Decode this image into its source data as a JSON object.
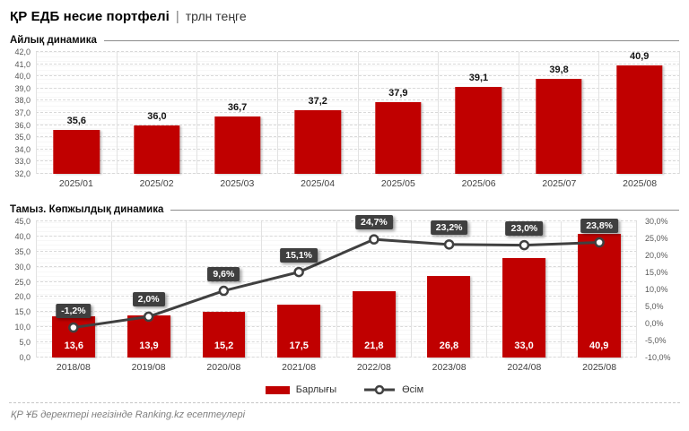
{
  "header": {
    "title": "ҚР ЕДБ несие портфелі",
    "separator": "|",
    "unit": "трлн теңге"
  },
  "legend": {
    "items": [
      {
        "label": "Барлығы",
        "type": "bar"
      },
      {
        "label": "Өсім",
        "type": "line"
      }
    ]
  },
  "footer": {
    "text": "ҚР ҰБ деректері негізінде Ranking.kz есептеулері"
  },
  "chart_data": [
    {
      "type": "bar",
      "title": "Айлық динамика",
      "categories": [
        "2025/01",
        "2025/02",
        "2025/03",
        "2025/04",
        "2025/05",
        "2025/06",
        "2025/07",
        "2025/08"
      ],
      "values": [
        35.6,
        36.0,
        36.7,
        37.2,
        37.9,
        39.1,
        39.8,
        40.9
      ],
      "value_labels": [
        "35,6",
        "36,0",
        "36,7",
        "37,2",
        "37,9",
        "39,1",
        "39,8",
        "40,9"
      ],
      "ylim": [
        32,
        42
      ],
      "ytick_labels": [
        "42,0",
        "41,0",
        "40,0",
        "39,0",
        "38,0",
        "37,0",
        "36,0",
        "35,0",
        "34,0",
        "33,0",
        "32,0"
      ],
      "grid": true,
      "bar_color": "#c00000",
      "legend_position": "none"
    },
    {
      "type": "bar+line",
      "title": "Тамыз. Көпжылдық динамика",
      "categories": [
        "2018/08",
        "2019/08",
        "2020/08",
        "2021/08",
        "2022/08",
        "2023/08",
        "2024/08",
        "2025/08"
      ],
      "series": [
        {
          "name": "Барлығы",
          "type": "bar",
          "axis": "left",
          "color": "#c00000",
          "values": [
            13.6,
            13.9,
            15.2,
            17.5,
            21.8,
            26.8,
            33.0,
            40.9
          ],
          "value_labels": [
            "13,6",
            "13,9",
            "15,2",
            "17,5",
            "21,8",
            "26,8",
            "33,0",
            "40,9"
          ]
        },
        {
          "name": "Өсім",
          "type": "line",
          "axis": "right",
          "color": "#404040",
          "values": [
            -1.2,
            2.0,
            9.6,
            15.1,
            24.7,
            23.2,
            23.0,
            23.8
          ],
          "value_labels": [
            "-1,2%",
            "2,0%",
            "9,6%",
            "15,1%",
            "24,7%",
            "23,2%",
            "23,0%",
            "23,8%"
          ]
        }
      ],
      "ylim_left": [
        0,
        45
      ],
      "ytick_labels_left": [
        "45,0",
        "40,0",
        "35,0",
        "30,0",
        "25,0",
        "20,0",
        "15,0",
        "10,0",
        "5,0",
        "0,0"
      ],
      "ylim_right": [
        -10,
        30
      ],
      "ytick_labels_right": [
        "30,0%",
        "25,0%",
        "20,0%",
        "15,0%",
        "10,0%",
        "5,0%",
        "0,0%",
        "-5,0%",
        "-10,0%"
      ],
      "grid": true,
      "legend_position": "bottom"
    }
  ]
}
